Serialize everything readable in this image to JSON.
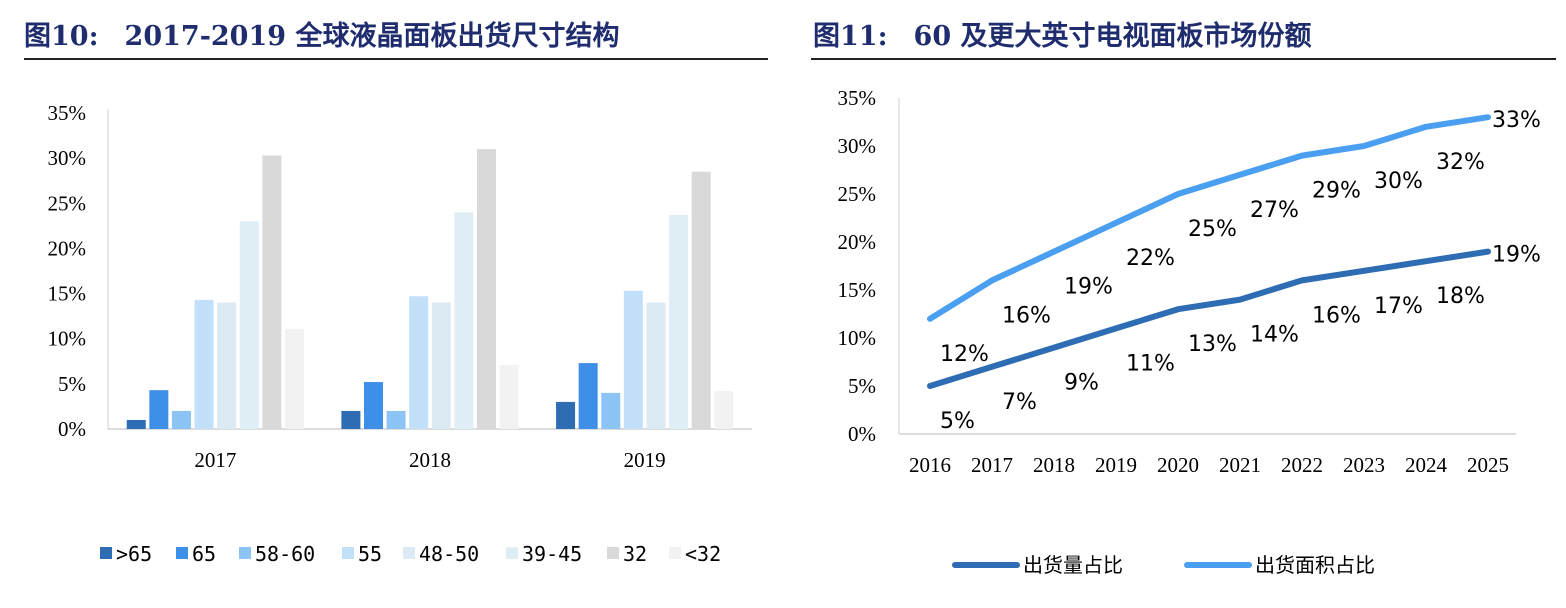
{
  "left": {
    "fig_number": "图10:",
    "title": "2017-2019 全球液晶面板出货尺寸结构",
    "chart_data": {
      "type": "bar",
      "categories": [
        "2017",
        "2018",
        "2019"
      ],
      "ylim": [
        0,
        35
      ],
      "yticks": [
        "0%",
        "5%",
        "10%",
        "15%",
        "20%",
        "25%",
        "30%",
        "35%"
      ],
      "legend_position": "bottom",
      "series": [
        {
          "name": ">65",
          "color": "#2e6db4",
          "values": [
            1.0,
            2.0,
            3.0
          ]
        },
        {
          "name": "65",
          "color": "#3d8fe8",
          "values": [
            4.3,
            5.2,
            7.3
          ]
        },
        {
          "name": "58-60",
          "color": "#8cc4f5",
          "values": [
            2.0,
            2.0,
            4.0
          ]
        },
        {
          "name": "55",
          "color": "#c2e0fa",
          "values": [
            14.3,
            14.7,
            15.3
          ]
        },
        {
          "name": "48-50",
          "color": "#dceaf3",
          "values": [
            14.0,
            14.0,
            14.0
          ]
        },
        {
          "name": "39-45",
          "color": "#dfedf5",
          "values": [
            23.0,
            24.0,
            23.7
          ]
        },
        {
          "name": "32",
          "color": "#d9d9d9",
          "values": [
            30.3,
            31.0,
            28.5
          ]
        },
        {
          "name": "<32",
          "color": "#f2f2f2",
          "values": [
            11.1,
            7.1,
            4.2
          ]
        }
      ]
    }
  },
  "right": {
    "fig_number": "图11:",
    "title": "60 及更大英寸电视面板市场份额",
    "chart_data": {
      "type": "line",
      "x": [
        "2016",
        "2017",
        "2018",
        "2019",
        "2020",
        "2021",
        "2022",
        "2023",
        "2024",
        "2025"
      ],
      "ylim": [
        0,
        35
      ],
      "yticks": [
        "0%",
        "5%",
        "10%",
        "15%",
        "20%",
        "25%",
        "30%",
        "35%"
      ],
      "legend_position": "bottom",
      "series": [
        {
          "name": "出货量占比",
          "color": "#2e6db4",
          "values": [
            5,
            7,
            9,
            11,
            13,
            14,
            16,
            17,
            18,
            19
          ],
          "labels": [
            "5%",
            "7%",
            "9%",
            "11%",
            "13%",
            "14%",
            "16%",
            "17%",
            "18%",
            "19%"
          ]
        },
        {
          "name": "出货面积占比",
          "color": "#4a9ff0",
          "values": [
            12,
            16,
            19,
            22,
            25,
            27,
            29,
            30,
            32,
            33
          ],
          "labels": [
            "12%",
            "16%",
            "19%",
            "22%",
            "25%",
            "27%",
            "29%",
            "30%",
            "32%",
            "33%"
          ]
        }
      ]
    }
  }
}
